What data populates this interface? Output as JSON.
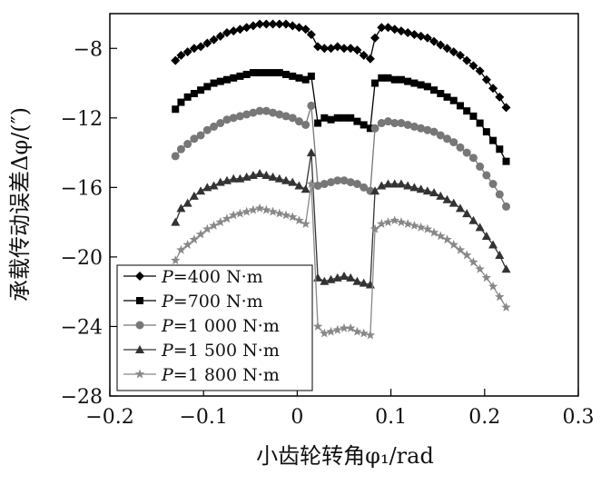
{
  "chart_data": {
    "type": "line",
    "title": "",
    "xlabel": "小齿轮转角φ₁/rad",
    "ylabel": "承载传动误差Δφ/(″)",
    "xlim": [
      -0.2,
      0.3
    ],
    "ylim": [
      -28,
      -6
    ],
    "xticks": [
      -0.2,
      -0.1,
      0,
      0.1,
      0.2,
      0.3
    ],
    "xtick_labels": [
      "−0.2",
      "−0.1",
      "0",
      "0.1",
      "0.2",
      "0.3"
    ],
    "yticks": [
      -28,
      -24,
      -20,
      -16,
      -12,
      -8
    ],
    "ytick_labels": [
      "−28",
      "−24",
      "−20",
      "−16",
      "−12",
      "−8"
    ],
    "grid": false,
    "legend_position": "bottom-left",
    "series": [
      {
        "name": "P=400 N·m",
        "legend_label": "=400 N·m",
        "marker": "diamond",
        "color": "#000000",
        "x": [
          -0.13,
          -0.124,
          -0.117,
          -0.11,
          -0.103,
          -0.096,
          -0.089,
          -0.082,
          -0.075,
          -0.068,
          -0.061,
          -0.054,
          -0.047,
          -0.04,
          -0.033,
          -0.026,
          -0.019,
          -0.012,
          -0.005,
          0.002,
          0.009,
          0.015,
          0.022,
          0.029,
          0.036,
          0.043,
          0.05,
          0.057,
          0.064,
          0.071,
          0.078,
          0.083,
          0.09,
          0.097,
          0.104,
          0.111,
          0.118,
          0.125,
          0.132,
          0.139,
          0.146,
          0.153,
          0.16,
          0.167,
          0.174,
          0.181,
          0.188,
          0.195,
          0.202,
          0.209,
          0.216,
          0.223
        ],
        "y": [
          -8.7,
          -8.4,
          -8.2,
          -8.0,
          -7.9,
          -7.7,
          -7.5,
          -7.3,
          -7.1,
          -7.0,
          -6.9,
          -6.8,
          -6.7,
          -6.6,
          -6.6,
          -6.6,
          -6.6,
          -6.6,
          -6.7,
          -6.8,
          -6.9,
          -7.2,
          -7.9,
          -8.0,
          -8.0,
          -7.9,
          -8.0,
          -8.0,
          -8.1,
          -8.4,
          -8.6,
          -7.4,
          -6.8,
          -6.8,
          -6.9,
          -7.0,
          -7.1,
          -7.2,
          -7.3,
          -7.4,
          -7.6,
          -7.8,
          -8.0,
          -8.2,
          -8.4,
          -8.7,
          -9.0,
          -9.3,
          -9.8,
          -10.3,
          -10.8,
          -11.4
        ]
      },
      {
        "name": "P=700 N·m",
        "legend_label": "=700 N·m",
        "marker": "square",
        "color": "#000000",
        "x": [
          -0.13,
          -0.124,
          -0.117,
          -0.11,
          -0.103,
          -0.096,
          -0.089,
          -0.082,
          -0.075,
          -0.068,
          -0.061,
          -0.054,
          -0.047,
          -0.04,
          -0.033,
          -0.026,
          -0.019,
          -0.012,
          -0.005,
          0.002,
          0.009,
          0.015,
          0.022,
          0.029,
          0.036,
          0.043,
          0.05,
          0.057,
          0.064,
          0.071,
          0.078,
          0.083,
          0.09,
          0.097,
          0.104,
          0.111,
          0.118,
          0.125,
          0.132,
          0.139,
          0.146,
          0.153,
          0.16,
          0.167,
          0.174,
          0.181,
          0.188,
          0.195,
          0.202,
          0.209,
          0.216,
          0.223
        ],
        "y": [
          -11.5,
          -11.1,
          -10.8,
          -10.6,
          -10.4,
          -10.2,
          -10.0,
          -9.9,
          -9.8,
          -9.7,
          -9.6,
          -9.5,
          -9.4,
          -9.4,
          -9.4,
          -9.4,
          -9.4,
          -9.5,
          -9.6,
          -9.7,
          -9.8,
          -9.6,
          -12.3,
          -12.0,
          -12.1,
          -12.0,
          -12.0,
          -12.0,
          -12.2,
          -12.4,
          -12.6,
          -10.0,
          -9.7,
          -9.7,
          -9.8,
          -9.8,
          -9.9,
          -10.0,
          -10.1,
          -10.2,
          -10.4,
          -10.6,
          -10.8,
          -11.0,
          -11.3,
          -11.6,
          -11.9,
          -12.3,
          -12.8,
          -13.3,
          -13.8,
          -14.5
        ]
      },
      {
        "name": "P=1 000 N·m",
        "legend_label": "=1 000 N·m",
        "marker": "circle",
        "color": "#777777",
        "x": [
          -0.13,
          -0.124,
          -0.117,
          -0.11,
          -0.103,
          -0.096,
          -0.089,
          -0.082,
          -0.075,
          -0.068,
          -0.061,
          -0.054,
          -0.047,
          -0.04,
          -0.033,
          -0.026,
          -0.019,
          -0.012,
          -0.005,
          0.002,
          0.009,
          0.015,
          0.022,
          0.029,
          0.036,
          0.043,
          0.05,
          0.057,
          0.064,
          0.071,
          0.078,
          0.083,
          0.09,
          0.097,
          0.104,
          0.111,
          0.118,
          0.125,
          0.132,
          0.139,
          0.146,
          0.153,
          0.16,
          0.167,
          0.174,
          0.181,
          0.188,
          0.195,
          0.202,
          0.209,
          0.216,
          0.223
        ],
        "y": [
          -14.2,
          -13.8,
          -13.5,
          -13.2,
          -13.0,
          -12.7,
          -12.5,
          -12.3,
          -12.1,
          -12.0,
          -11.9,
          -11.8,
          -11.7,
          -11.6,
          -11.6,
          -11.7,
          -11.8,
          -11.9,
          -12.0,
          -12.2,
          -12.4,
          -11.3,
          -15.9,
          -15.8,
          -15.7,
          -15.6,
          -15.6,
          -15.7,
          -15.8,
          -16.0,
          -16.2,
          -12.6,
          -12.3,
          -12.2,
          -12.3,
          -12.3,
          -12.4,
          -12.5,
          -12.6,
          -12.7,
          -12.8,
          -13.0,
          -13.2,
          -13.4,
          -13.7,
          -14.0,
          -14.3,
          -14.8,
          -15.3,
          -15.8,
          -16.4,
          -17.1
        ]
      },
      {
        "name": "P=1 500 N·m",
        "legend_label": "=1 500 N·m",
        "marker": "triangle",
        "color": "#333333",
        "x": [
          -0.13,
          -0.124,
          -0.117,
          -0.11,
          -0.103,
          -0.096,
          -0.089,
          -0.082,
          -0.075,
          -0.068,
          -0.061,
          -0.054,
          -0.047,
          -0.04,
          -0.033,
          -0.026,
          -0.019,
          -0.012,
          -0.005,
          0.002,
          0.009,
          0.015,
          0.022,
          0.029,
          0.036,
          0.043,
          0.05,
          0.057,
          0.064,
          0.071,
          0.078,
          0.083,
          0.09,
          0.097,
          0.104,
          0.111,
          0.118,
          0.125,
          0.132,
          0.139,
          0.146,
          0.153,
          0.16,
          0.167,
          0.174,
          0.181,
          0.188,
          0.195,
          0.202,
          0.209,
          0.216,
          0.223
        ],
        "y": [
          -18.0,
          -17.2,
          -16.9,
          -16.5,
          -16.2,
          -16.0,
          -15.9,
          -15.7,
          -15.6,
          -15.5,
          -15.5,
          -15.4,
          -15.3,
          -15.2,
          -15.3,
          -15.4,
          -15.5,
          -15.6,
          -15.7,
          -15.9,
          -16.1,
          -14.0,
          -21.2,
          -21.4,
          -21.3,
          -21.2,
          -21.1,
          -21.2,
          -21.4,
          -21.5,
          -21.6,
          -16.2,
          -15.9,
          -15.8,
          -15.8,
          -15.8,
          -15.9,
          -16.0,
          -16.1,
          -16.2,
          -16.3,
          -16.5,
          -16.7,
          -16.9,
          -17.2,
          -17.5,
          -17.9,
          -18.3,
          -18.8,
          -19.3,
          -19.9,
          -20.7
        ]
      },
      {
        "name": "P=1 800 N·m",
        "legend_label": "=1 800 N·m",
        "marker": "star",
        "color": "#888888",
        "x": [
          -0.13,
          -0.124,
          -0.117,
          -0.11,
          -0.103,
          -0.096,
          -0.089,
          -0.082,
          -0.075,
          -0.068,
          -0.061,
          -0.054,
          -0.047,
          -0.04,
          -0.033,
          -0.026,
          -0.019,
          -0.012,
          -0.005,
          0.002,
          0.009,
          0.015,
          0.022,
          0.029,
          0.036,
          0.043,
          0.05,
          0.057,
          0.064,
          0.071,
          0.078,
          0.083,
          0.09,
          0.097,
          0.104,
          0.111,
          0.118,
          0.125,
          0.132,
          0.139,
          0.146,
          0.153,
          0.16,
          0.167,
          0.174,
          0.181,
          0.188,
          0.195,
          0.202,
          0.209,
          0.216,
          0.223
        ],
        "y": [
          -20.2,
          -19.6,
          -19.3,
          -19.0,
          -18.7,
          -18.4,
          -18.2,
          -18.0,
          -17.8,
          -17.6,
          -17.5,
          -17.4,
          -17.3,
          -17.2,
          -17.3,
          -17.4,
          -17.5,
          -17.6,
          -17.7,
          -17.9,
          -18.1,
          -15.8,
          -24.0,
          -24.4,
          -24.3,
          -24.2,
          -24.1,
          -24.1,
          -24.3,
          -24.4,
          -24.5,
          -18.4,
          -18.1,
          -18.0,
          -17.9,
          -18.0,
          -18.1,
          -18.2,
          -18.3,
          -18.4,
          -18.6,
          -18.8,
          -19.0,
          -19.3,
          -19.6,
          -19.9,
          -20.3,
          -20.7,
          -21.2,
          -21.7,
          -22.3,
          -22.9
        ]
      }
    ]
  }
}
